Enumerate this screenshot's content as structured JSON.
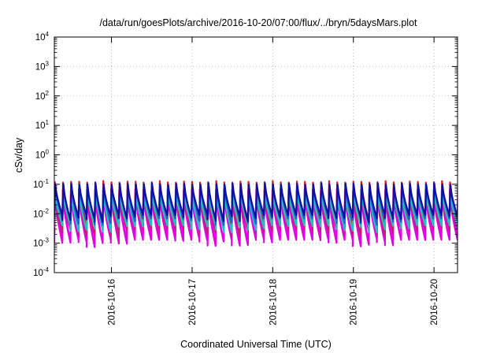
{
  "chart_data": {
    "type": "line",
    "title": "/data/run/goesPlots/archive/2016-10-20/07:00/flux/../bryn/5daysMars.plot",
    "xlabel": "Coordinated Universal Time (UTC)",
    "ylabel": "cSv/day",
    "yscale": "log",
    "ylim": [
      0.0001,
      10000
    ],
    "y_ticks": [
      {
        "base": "10",
        "exp": "-4",
        "value": 0.0001
      },
      {
        "base": "10",
        "exp": "-3",
        "value": 0.001
      },
      {
        "base": "10",
        "exp": "-2",
        "value": 0.01
      },
      {
        "base": "10",
        "exp": "-1",
        "value": 0.1
      },
      {
        "base": "10",
        "exp": "0",
        "value": 1
      },
      {
        "base": "10",
        "exp": "1",
        "value": 10
      },
      {
        "base": "10",
        "exp": "2",
        "value": 100
      },
      {
        "base": "10",
        "exp": "3",
        "value": 1000
      },
      {
        "base": "10",
        "exp": "4",
        "value": 10000
      }
    ],
    "xlim": [
      "2016-10-15T07:00",
      "2016-10-20T07:00"
    ],
    "x_ticks": [
      "2016-10-16",
      "2016-10-17",
      "2016-10-18",
      "2016-10-19",
      "2016-10-20"
    ],
    "grid": true,
    "legend": "none",
    "periodic_pattern": {
      "peaks_per_day": 10,
      "peak_value": 0.13,
      "trough_range": [
        0.0012,
        0.009
      ]
    },
    "series": [
      {
        "color": "#ff00ff",
        "peak": 0.07,
        "trough": 0.0018
      },
      {
        "color": "#e000e0",
        "peak": 0.05,
        "trough": 0.0013
      },
      {
        "color": "#c02070",
        "peak": 0.06,
        "trough": 0.003
      },
      {
        "color": "#d02020",
        "peak": 0.13,
        "trough": 0.006
      },
      {
        "color": "#20c0c0",
        "peak": 0.06,
        "trough": 0.004
      },
      {
        "color": "#2060e0",
        "peak": 0.1,
        "trough": 0.007
      },
      {
        "color": "#1010a0",
        "peak": 0.11,
        "trough": 0.009
      }
    ]
  }
}
